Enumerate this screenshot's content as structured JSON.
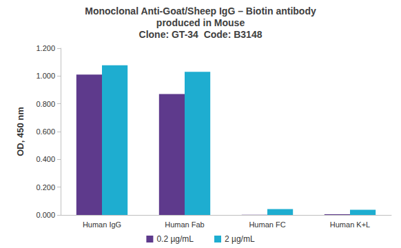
{
  "chart_data": {
    "type": "bar",
    "title": "Monoclonal Anti-Goat/Sheep IgG – Biotin antibody\nproduced in Mouse\nClone: GT-34  Code: B3148",
    "y_label": "OD, 450 nm",
    "categories": [
      "Human IgG",
      "Human Fab",
      "Human FC",
      "Human K+L"
    ],
    "series": [
      {
        "name": "0.2 µg/mL",
        "color": "#5e3a8c",
        "values": [
          1.01,
          0.87,
          0.001,
          0.005
        ]
      },
      {
        "name": "2 µg/mL",
        "color": "#1eadd0",
        "values": [
          1.077,
          1.03,
          0.042,
          0.037
        ]
      }
    ],
    "ylim": [
      0,
      1.2
    ],
    "yticks": [
      {
        "value": 0,
        "label": "0.000"
      },
      {
        "value": 0.2,
        "label": "0.200"
      },
      {
        "value": 0.4,
        "label": "0.400"
      },
      {
        "value": 0.6,
        "label": "0.600"
      },
      {
        "value": 0.8,
        "label": "0.800"
      },
      {
        "value": 1.0,
        "label": "1.000"
      },
      {
        "value": 1.2,
        "label": "1.200"
      }
    ],
    "grid": false,
    "legend": "bottom"
  }
}
